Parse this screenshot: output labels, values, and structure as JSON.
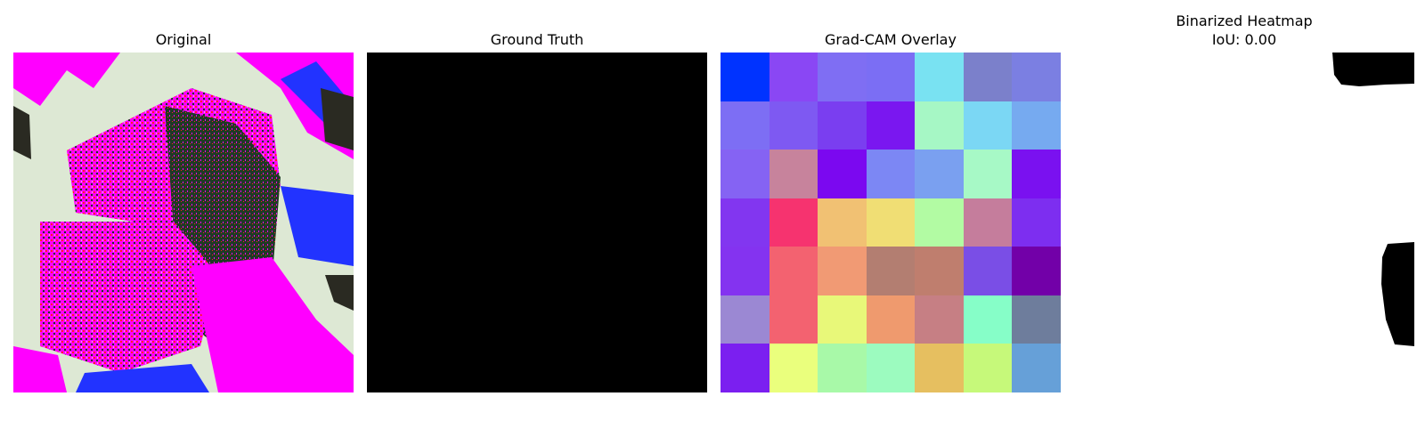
{
  "panels": {
    "original": {
      "title": "Original"
    },
    "ground_truth": {
      "title": "Ground Truth"
    },
    "gradcam": {
      "title": "Grad-CAM Overlay",
      "cell_colors": [
        [
          "#0033ff",
          "#8a47f4",
          "#7f6ef3",
          "#7b6ef4",
          "#79e2f2",
          "#7b80cb",
          "#7b7fe2"
        ],
        [
          "#7d6ef4",
          "#7e59f2",
          "#7a3ef0",
          "#7a17f0",
          "#a6f7c5",
          "#7bd7f4",
          "#76aaf0"
        ],
        [
          "#8563f3",
          "#c7839c",
          "#7b08f0",
          "#7c87f4",
          "#7aa0f0",
          "#a7f9c6",
          "#7a11f0"
        ],
        [
          "#8236f0",
          "#f6336f",
          "#f1c173",
          "#f0de74",
          "#b2fba3",
          "#c57d9c",
          "#7d2ef0"
        ],
        [
          "#8433f0",
          "#f36270",
          "#f19a74",
          "#b37e71",
          "#bf7e6e",
          "#7a4ee6",
          "#7200a8"
        ],
        [
          "#9b88d3",
          "#f36270",
          "#e8f879",
          "#ef9a6e",
          "#c67f84",
          "#86fec8",
          "#6e7d9c"
        ],
        [
          "#7b1ff0",
          "#eaff7d",
          "#a8f9a8",
          "#9cfbbf",
          "#e6bf60",
          "#c6f97a",
          "#66a0d8"
        ]
      ]
    },
    "binarized": {
      "title": "Binarized Heatmap",
      "subtitle": "IoU: 0.00"
    }
  }
}
